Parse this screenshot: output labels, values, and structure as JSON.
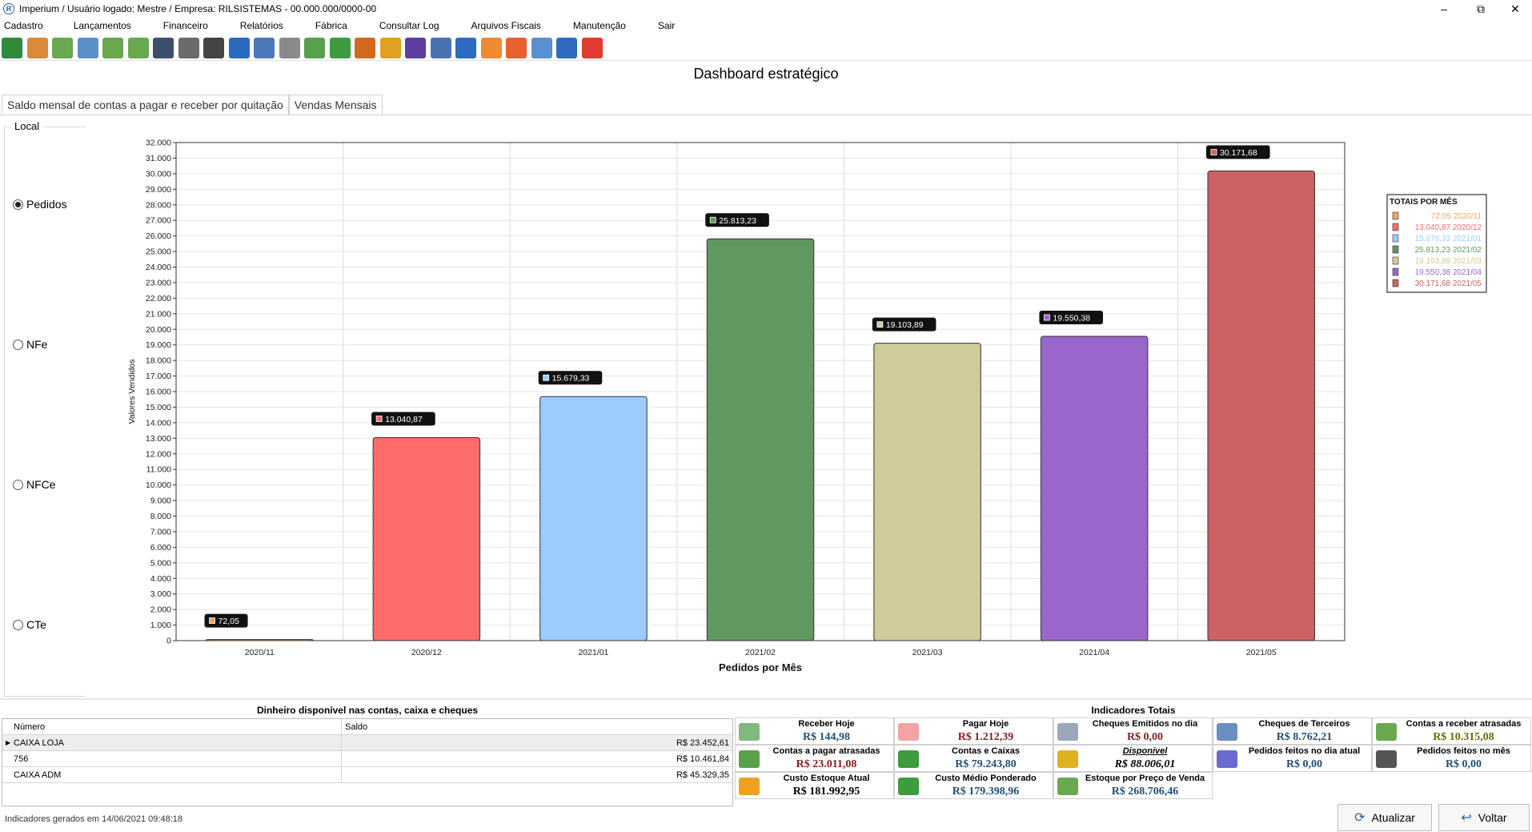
{
  "window": {
    "title": "Imperium / Usuário logado: Mestre  /   Empresa: RILSISTEMAS - 00.000.000/0000-00",
    "app_icon_label": "R",
    "minimize": "–",
    "restore": "⧉",
    "close": "✕"
  },
  "menu": [
    "Cadastro",
    "Lançamentos",
    "Financeiro",
    "Relatórios",
    "Fábrica",
    "Consultar Log",
    "Arquivos Fiscais",
    "Manutenção",
    "Sair"
  ],
  "toolbar_icons": [
    {
      "name": "green-square-icon",
      "color": "#2e8b3c"
    },
    {
      "name": "users-icon",
      "color": "#d98a3a"
    },
    {
      "name": "leaf-icon",
      "color": "#6aa84f"
    },
    {
      "name": "dfe-icon",
      "color": "#5b8fc9"
    },
    {
      "name": "leaf2-icon",
      "color": "#6aa84f"
    },
    {
      "name": "leaf3-icon",
      "color": "#6aa84f"
    },
    {
      "name": "book-icon",
      "color": "#3d4f6a"
    },
    {
      "name": "safe-icon",
      "color": "#6b6b6b"
    },
    {
      "name": "barcode-icon",
      "color": "#444444"
    },
    {
      "name": "card-icon",
      "color": "#2a6bbf"
    },
    {
      "name": "check-icon",
      "color": "#4a7ab8"
    },
    {
      "name": "check2-icon",
      "color": "#8a8a8a"
    },
    {
      "name": "transfer-icon",
      "color": "#5aa04a"
    },
    {
      "name": "money-icon",
      "color": "#3e9b3e"
    },
    {
      "name": "factory-icon",
      "color": "#d2691e"
    },
    {
      "name": "sintegra-icon",
      "color": "#e0a020"
    },
    {
      "name": "email-icon",
      "color": "#5a3fa0"
    },
    {
      "name": "list-search-icon",
      "color": "#4a72b0"
    },
    {
      "name": "search-icon",
      "color": "#2f6cc0"
    },
    {
      "name": "person-icon",
      "color": "#f08a30"
    },
    {
      "name": "person2-icon",
      "color": "#e8602c"
    },
    {
      "name": "line-chart-icon",
      "color": "#5a8fd0"
    },
    {
      "name": "bar-chart-icon",
      "color": "#2f6cc0"
    },
    {
      "name": "exit-icon",
      "color": "#e03c31"
    }
  ],
  "dashboard_title": "Dashboard estratégico",
  "tabs": [
    "Saldo mensal de contas a pagar e receber por quitação",
    "Vendas Mensais"
  ],
  "local": {
    "legend": "Local",
    "options": [
      "Pedidos",
      "NFe",
      "NFCe",
      "CTe"
    ],
    "selected": "Pedidos"
  },
  "chart_data": {
    "type": "bar",
    "categories": [
      "2020/11",
      "2020/12",
      "2021/01",
      "2021/02",
      "2021/03",
      "2021/04",
      "2021/05"
    ],
    "values": [
      72.05,
      13040.87,
      15679.33,
      25813.23,
      19103.89,
      19550.38,
      30171.68
    ],
    "data_labels": [
      "72,05",
      "13.040,87",
      "15.679,33",
      "25.813,23",
      "19.103,89",
      "19.550,38",
      "30.171,68"
    ],
    "colors": [
      "#f4a460",
      "#ff6a6a",
      "#9dcbff",
      "#5f995f",
      "#cfcc9a",
      "#9966cc",
      "#cd6262"
    ],
    "xlabel": "Pedidos por Mês",
    "ylabel": "Valores Vendidos",
    "ylim": [
      0,
      32000
    ],
    "ytick_step": 1000,
    "grid": true,
    "legend_title": "TOTAIS POR MÊS",
    "legend_placement": "right",
    "legend_entries": [
      "72,05 2020/11",
      "13.040,87 2020/12",
      "15.679,33 2021/01",
      "25.813,23 2021/02",
      "19.103,89 2021/03",
      "19.550,38 2021/04",
      "30.171,68 2021/05"
    ]
  },
  "cash": {
    "title": "Dinheiro disponível nas contas, caixa e cheques",
    "headers": [
      "Número",
      "Saldo"
    ],
    "rows": [
      {
        "name": "CAIXA LOJA",
        "balance": "R$ 23.452,61"
      },
      {
        "name": "756",
        "balance": "R$ 10.461,84"
      },
      {
        "name": "CAIXA ADM",
        "balance": "R$ 45.329,35"
      }
    ]
  },
  "indicators": {
    "title": "Indicadores Totais",
    "items": [
      {
        "label": "Receber Hoje",
        "value": "R$ 144,98",
        "tone": "blue",
        "icon": "cash-icon",
        "icon_color": "#7fb97f"
      },
      {
        "label": "Pagar Hoje",
        "value": "R$ 1.212,39",
        "tone": "red",
        "icon": "pay-icon",
        "icon_color": "#f2a3a3"
      },
      {
        "label": "Cheques Emitidos no dia",
        "value": "R$ 0,00",
        "tone": "red",
        "icon": "cheque-icon",
        "icon_color": "#9aa7b8"
      },
      {
        "label": "Cheques de Terceiros",
        "value": "R$ 8.762,21",
        "tone": "blue",
        "icon": "cheque-third-icon",
        "icon_color": "#6b8ec2"
      },
      {
        "label": "Contas a receber atrasadas",
        "value": "R$ 10.315,08",
        "tone": "green",
        "icon": "receive-late-icon",
        "icon_color": "#6aa84f"
      },
      {
        "label": "Contas a pagar atrasadas",
        "value": "R$ 23.011,08",
        "tone": "red",
        "icon": "pay-late-icon",
        "icon_color": "#5aa04a"
      },
      {
        "label": "Contas e Caixas",
        "value": "R$ 79.243,80",
        "tone": "blue",
        "icon": "money-bag-icon",
        "icon_color": "#3e9b3e"
      },
      {
        "label": "Disponível",
        "value": "R$ 88.006,01",
        "tone": "black",
        "icon": "coins-icon",
        "icon_color": "#e0b020"
      },
      {
        "label": "Pedidos feitos no dia atual",
        "value": "R$ 0,00",
        "tone": "blue",
        "icon": "register-icon",
        "icon_color": "#6a6ad0"
      },
      {
        "label": "Pedidos feitos no mês",
        "value": "R$ 0,00",
        "tone": "blue",
        "icon": "register2-icon",
        "icon_color": "#555555"
      },
      {
        "label": "Custo Estoque Atual",
        "value": "R$ 181.992,95",
        "tone": "black",
        "icon": "box-icon",
        "icon_color": "#f0a020"
      },
      {
        "label": "Custo Médio Ponderado",
        "value": "R$ 179.398,96",
        "tone": "blue",
        "icon": "box-green-icon",
        "icon_color": "#3e9b3e"
      },
      {
        "label": "Estoque por Preço de Venda",
        "value": "R$ 268.706,46",
        "tone": "blue",
        "icon": "dollar-arrows-icon",
        "icon_color": "#6aa84f"
      }
    ]
  },
  "status": "Indicadores gerados em 14/06/2021 09:48:18",
  "buttons": {
    "refresh": "Atualizar",
    "back": "Voltar"
  }
}
